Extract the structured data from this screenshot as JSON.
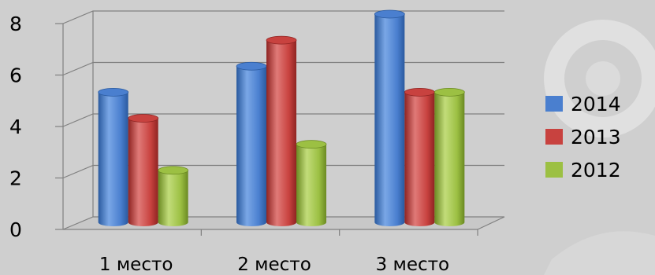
{
  "chart_data": {
    "type": "bar",
    "categories": [
      "1 место",
      "2 место",
      "3 место"
    ],
    "series": [
      {
        "name": "2014",
        "values": [
          5,
          6,
          8
        ]
      },
      {
        "name": "2013",
        "values": [
          4,
          7,
          5
        ]
      },
      {
        "name": "2012",
        "values": [
          2,
          3,
          5
        ]
      }
    ],
    "yticks": [
      "0",
      "2",
      "4",
      "6",
      "8"
    ],
    "ylim": [
      0,
      8
    ],
    "grid": true,
    "legend": "right",
    "colors": {
      "2014": {
        "light": "#7aa7e6",
        "mid": "#4a7fcf",
        "dark": "#2a5a9f"
      },
      "2013": {
        "light": "#e07a78",
        "mid": "#c8423f",
        "dark": "#8f2422"
      },
      "2012": {
        "light": "#c2dc7a",
        "mid": "#9cc043",
        "dark": "#6b8a22"
      }
    }
  }
}
